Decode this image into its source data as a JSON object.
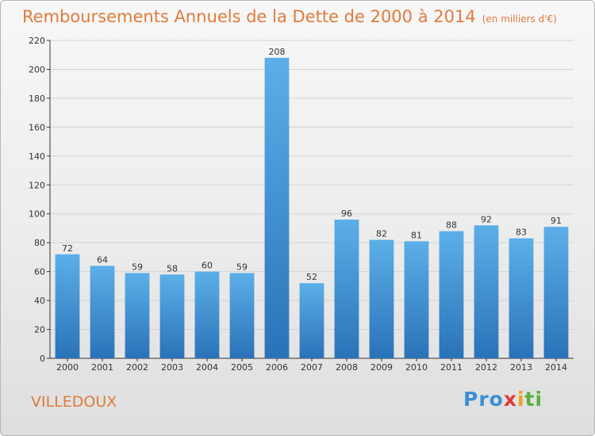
{
  "title": "Remboursements Annuels de la Dette de 2000 à 2014",
  "unit_note": "(en milliers d'€)",
  "place": "VILLEDOUX",
  "logo": [
    "Pro",
    "x",
    "i",
    "ti"
  ],
  "colors": {
    "accent": "#e07a3c",
    "bar": "#4d9fe0",
    "bar_dark": "#2f78bd"
  },
  "chart_data": {
    "type": "bar",
    "categories": [
      "2000",
      "2001",
      "2002",
      "2003",
      "2004",
      "2005",
      "2006",
      "2007",
      "2008",
      "2009",
      "2010",
      "2011",
      "2012",
      "2013",
      "2014"
    ],
    "values": [
      72,
      64,
      59,
      58,
      60,
      59,
      208,
      52,
      96,
      82,
      81,
      88,
      92,
      83,
      91
    ],
    "title": "Remboursements Annuels de la Dette de 2000 à 2014",
    "xlabel": "",
    "ylabel": "",
    "ylim": [
      0,
      220
    ],
    "yticks": [
      0,
      20,
      40,
      60,
      80,
      100,
      120,
      140,
      160,
      180,
      200,
      220
    ],
    "grid": true,
    "data_labels": true
  }
}
